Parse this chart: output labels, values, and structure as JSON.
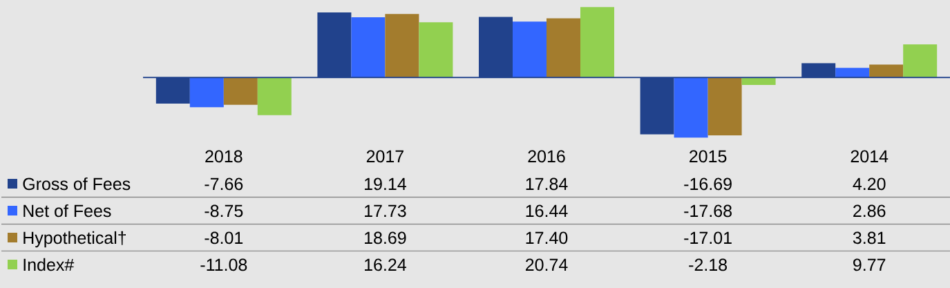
{
  "chart_data": {
    "type": "bar",
    "categories": [
      "2018",
      "2017",
      "2016",
      "2015",
      "2014"
    ],
    "legend": "bottom",
    "series": [
      {
        "name": "Gross of Fees",
        "color": "#21428c",
        "values": [
          -7.66,
          19.14,
          17.84,
          -16.69,
          4.2
        ],
        "value_labels": [
          "-7.66",
          "19.14",
          "17.84",
          "-16.69",
          "4.20"
        ]
      },
      {
        "name": "Net of Fees",
        "color": "#3366ff",
        "values": [
          -8.75,
          17.73,
          16.44,
          -17.68,
          2.86
        ],
        "value_labels": [
          "-8.75",
          "17.73",
          "16.44",
          "-17.68",
          "2.86"
        ]
      },
      {
        "name": "Hypothetical†",
        "color": "#a37c2d",
        "values": [
          -8.01,
          18.69,
          17.4,
          -17.01,
          3.81
        ],
        "value_labels": [
          "-8.01",
          "18.69",
          "17.40",
          "-17.01",
          "3.81"
        ]
      },
      {
        "name": "Index#",
        "color": "#92d050",
        "values": [
          -11.08,
          16.24,
          20.74,
          -2.18,
          9.77
        ],
        "value_labels": [
          "-11.08",
          "16.24",
          "20.74",
          "-2.18",
          "9.77"
        ]
      }
    ],
    "ref_lines": [
      {
        "axis": "y",
        "value": 0,
        "color": "#21428c"
      }
    ]
  }
}
